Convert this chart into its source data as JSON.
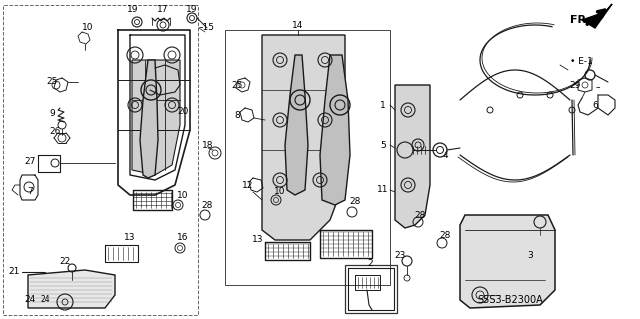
{
  "bg_color": "#ffffff",
  "diagram_code": "S5S3-B2300A",
  "line_color": "#1a1a1a",
  "label_fontsize": 6.5,
  "code_fontsize": 7.0,
  "fr_fontsize": 9.0
}
